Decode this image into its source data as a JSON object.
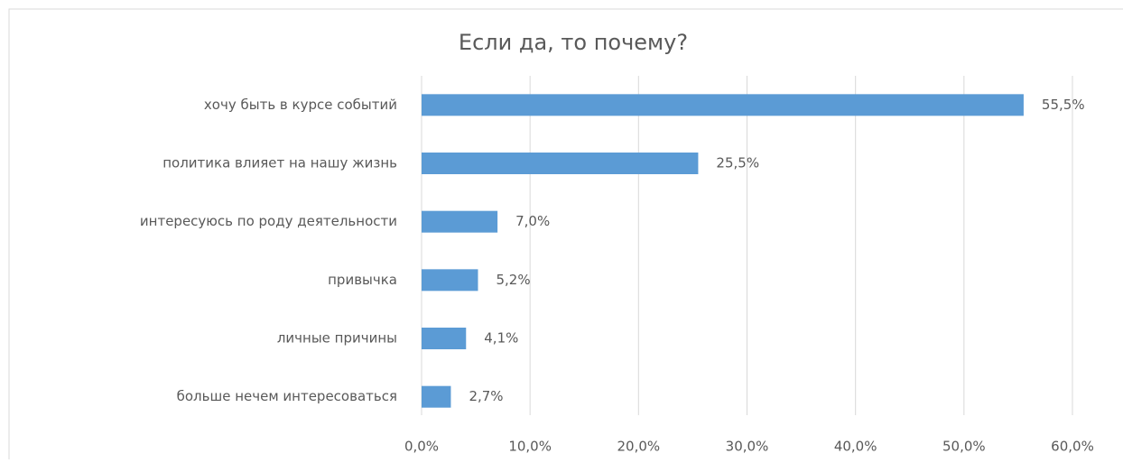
{
  "chart_data": {
    "type": "bar",
    "orientation": "horizontal",
    "title": "Если да, то почему?",
    "categories": [
      "хочу быть в курсе событий",
      "политика влияет на нашу жизнь",
      "интересуюсь по роду деятельности",
      "привычка",
      "личные причины",
      "больше нечем интересоваться"
    ],
    "values": [
      55.5,
      25.5,
      7.0,
      5.2,
      4.1,
      2.7
    ],
    "value_labels": [
      "55,5%",
      "25,5%",
      "7,0%",
      "5,2%",
      "4,1%",
      "2,7%"
    ],
    "color": "#5b9bd5",
    "xlim": [
      0,
      60
    ],
    "xticks": [
      {
        "value": 0,
        "label": "0,0%"
      },
      {
        "value": 10,
        "label": "10,0%"
      },
      {
        "value": 20,
        "label": "20,0%"
      },
      {
        "value": 30,
        "label": "30,0%"
      },
      {
        "value": 40,
        "label": "40,0%"
      },
      {
        "value": 50,
        "label": "50,0%"
      },
      {
        "value": 60,
        "label": "60,0%"
      }
    ],
    "grid": true
  }
}
